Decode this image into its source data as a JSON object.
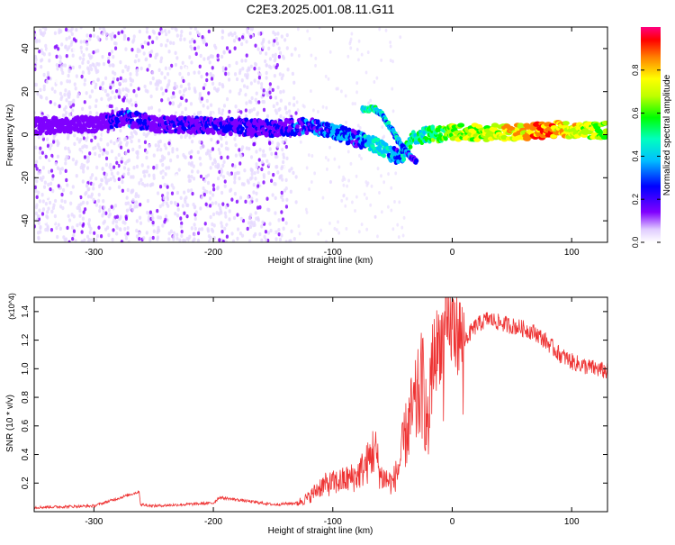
{
  "title": "C2E3.2025.001.08.11.G11",
  "chart_data": [
    {
      "type": "heatmap",
      "xlabel": "Height of straight line (km)",
      "ylabel": "Frequency (Hz)",
      "xlim": [
        -350,
        130
      ],
      "ylim": [
        -50,
        50
      ],
      "xticks": [
        -300,
        -200,
        -100,
        0,
        100
      ],
      "yticks": [
        -40,
        -20,
        0,
        20,
        40
      ],
      "colorbar": {
        "label": "Normalized spectral amplitude",
        "range": [
          0.0,
          1.0
        ],
        "ticks": [
          "0.0",
          "0.2",
          "0.4",
          "0.6",
          "0.8"
        ],
        "colormap": [
          "#ffffff",
          "#e6d9ff",
          "#7f00ff",
          "#0000ff",
          "#00bfff",
          "#00ffaa",
          "#00ff00",
          "#aaff00",
          "#ffff00",
          "#ff8000",
          "#ff0000",
          "#ff00aa"
        ]
      },
      "ridge": {
        "x": [
          -350,
          -300,
          -275,
          -250,
          -200,
          -150,
          -120,
          -100,
          -90,
          -80,
          -70,
          -60,
          -50,
          -45,
          -40,
          -35,
          -30,
          -20,
          0,
          20,
          50,
          80,
          90,
          100,
          130
        ],
        "y": [
          4,
          5,
          8,
          5,
          4,
          3,
          4,
          2,
          0,
          -2,
          -4,
          -6,
          -9,
          -11,
          -8,
          -4,
          -1,
          0,
          1,
          1,
          1,
          2,
          3,
          2,
          2
        ],
        "amp": [
          0.15,
          0.2,
          0.35,
          0.25,
          0.3,
          0.3,
          0.35,
          0.4,
          0.45,
          0.35,
          0.5,
          0.5,
          0.45,
          0.4,
          0.5,
          0.55,
          0.55,
          0.6,
          0.7,
          0.75,
          0.8,
          0.95,
          0.85,
          0.8,
          0.7
        ]
      },
      "branch": {
        "x": [
          -75,
          -65,
          -60,
          -55,
          -50,
          -45,
          -40,
          -35,
          -30
        ],
        "y": [
          12,
          12,
          10,
          6,
          2,
          -3,
          -7,
          -10,
          -12
        ],
        "amp": [
          0.5,
          0.55,
          0.45,
          0.5,
          0.45,
          0.45,
          0.4,
          0.35,
          0.3
        ]
      }
    },
    {
      "type": "line",
      "xlabel": "Height of straight line (km)",
      "ylabel": "SNR (10 * v/v)",
      "y_multiplier": "(x10^4)",
      "xlim": [
        -350,
        130
      ],
      "ylim": [
        0,
        1.5
      ],
      "xticks": [
        -300,
        -200,
        -100,
        0,
        100
      ],
      "yticks": [
        0.2,
        0.4,
        0.6,
        0.8,
        1.0,
        1.2,
        1.4
      ],
      "color": "#ee3333",
      "series": [
        {
          "x": [
            -350,
            -300,
            -262,
            -261,
            -250,
            -200,
            -195,
            -150,
            -130,
            -120,
            -110,
            -100,
            -90,
            -80,
            -70,
            -65,
            -60,
            -50,
            -45,
            -40,
            -35,
            -30,
            -25,
            -20,
            -18,
            -15,
            -10,
            -5,
            0,
            5,
            10,
            20,
            30,
            40,
            50,
            60,
            70,
            80,
            90,
            100,
            110,
            120,
            130
          ],
          "y": [
            0.03,
            0.04,
            0.14,
            0.05,
            0.04,
            0.06,
            0.1,
            0.05,
            0.06,
            0.1,
            0.18,
            0.2,
            0.22,
            0.25,
            0.35,
            0.45,
            0.25,
            0.2,
            0.3,
            0.5,
            0.65,
            0.75,
            0.9,
            0.55,
            1.0,
            1.1,
            1.2,
            1.25,
            1.3,
            1.25,
            1.2,
            1.3,
            1.35,
            1.32,
            1.3,
            1.28,
            1.25,
            1.18,
            1.1,
            1.05,
            1.02,
            1.0,
            0.98
          ]
        }
      ]
    }
  ]
}
